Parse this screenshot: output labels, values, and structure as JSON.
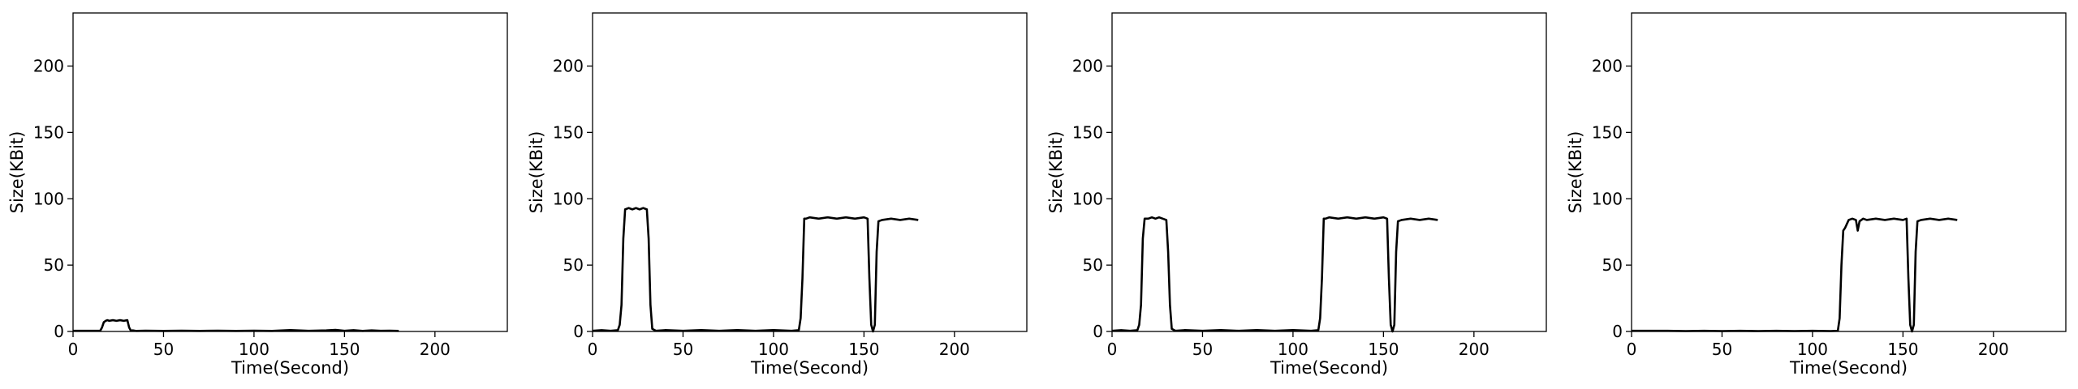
{
  "chart_data": [
    {
      "type": "line",
      "xlabel": "Time(Second)",
      "ylabel": "Size(KBit)",
      "xlim": [
        0,
        240
      ],
      "ylim": [
        0,
        240
      ],
      "xticks": [
        0,
        50,
        100,
        150,
        200
      ],
      "yticks": [
        0,
        50,
        100,
        150,
        200
      ],
      "grid": false,
      "series": [
        {
          "x": [
            0,
            15,
            16,
            17,
            18,
            19,
            20,
            22,
            24,
            26,
            28,
            30,
            31,
            32,
            33,
            35,
            40,
            50,
            60,
            70,
            80,
            90,
            100,
            110,
            120,
            130,
            140,
            145,
            150,
            155,
            160,
            165,
            170,
            175,
            180
          ],
          "values": [
            0.5,
            0.5,
            3,
            7,
            8,
            8.5,
            8,
            8.5,
            8,
            8.5,
            8,
            8.5,
            3,
            0.5,
            0.8,
            0.4,
            0.6,
            0.4,
            0.6,
            0.4,
            0.6,
            0.4,
            0.6,
            0.4,
            1,
            0.5,
            0.8,
            1.2,
            0.5,
            1,
            0.4,
            0.8,
            0.5,
            0.6,
            0.4
          ]
        }
      ]
    },
    {
      "type": "line",
      "xlabel": "Time(Second)",
      "ylabel": "Size(KBit)",
      "xlim": [
        0,
        240
      ],
      "ylim": [
        0,
        240
      ],
      "xticks": [
        0,
        50,
        100,
        150,
        200
      ],
      "yticks": [
        0,
        50,
        100,
        150,
        200
      ],
      "grid": false,
      "series": [
        {
          "x": [
            0,
            5,
            10,
            14,
            15,
            16,
            17,
            18,
            20,
            22,
            24,
            26,
            28,
            30,
            31,
            32,
            33,
            35,
            40,
            50,
            60,
            70,
            80,
            90,
            100,
            110,
            114,
            115,
            116,
            117,
            118,
            120,
            125,
            130,
            135,
            140,
            145,
            150,
            152,
            153,
            154,
            155,
            156,
            157,
            158,
            160,
            165,
            170,
            175,
            180
          ],
          "values": [
            0.5,
            1,
            0.5,
            1,
            5,
            20,
            70,
            92,
            93,
            92,
            93,
            92,
            93,
            92,
            70,
            20,
            2,
            0.5,
            1,
            0.5,
            1,
            0.5,
            1,
            0.5,
            1,
            0.5,
            1,
            10,
            40,
            85,
            85,
            86,
            85,
            86,
            85,
            86,
            85,
            86,
            85,
            40,
            5,
            0,
            5,
            60,
            83,
            84,
            85,
            84,
            85,
            84
          ]
        }
      ]
    },
    {
      "type": "line",
      "xlabel": "Time(Second)",
      "ylabel": "Size(KBit)",
      "xlim": [
        0,
        240
      ],
      "ylim": [
        0,
        240
      ],
      "xticks": [
        0,
        50,
        100,
        150,
        200
      ],
      "yticks": [
        0,
        50,
        100,
        150,
        200
      ],
      "grid": false,
      "series": [
        {
          "x": [
            0,
            5,
            10,
            14,
            15,
            16,
            17,
            18,
            20,
            22,
            24,
            26,
            28,
            30,
            31,
            32,
            33,
            35,
            40,
            50,
            60,
            70,
            80,
            90,
            100,
            110,
            114,
            115,
            116,
            117,
            118,
            120,
            125,
            130,
            135,
            140,
            145,
            150,
            152,
            153,
            154,
            155,
            156,
            157,
            158,
            160,
            165,
            170,
            175,
            180
          ],
          "values": [
            0.5,
            1,
            0.5,
            1,
            5,
            20,
            70,
            85,
            85,
            86,
            85,
            86,
            85,
            84,
            60,
            20,
            2,
            0.5,
            1,
            0.5,
            1,
            0.5,
            1,
            0.5,
            1,
            0.5,
            1,
            10,
            40,
            85,
            85,
            86,
            85,
            86,
            85,
            86,
            85,
            86,
            85,
            40,
            5,
            0,
            5,
            60,
            83,
            84,
            85,
            84,
            85,
            84
          ]
        }
      ]
    },
    {
      "type": "line",
      "xlabel": "Time(Second)",
      "ylabel": "Size(KBit)",
      "xlim": [
        0,
        240
      ],
      "ylim": [
        0,
        240
      ],
      "xticks": [
        0,
        50,
        100,
        150,
        200
      ],
      "yticks": [
        0,
        50,
        100,
        150,
        200
      ],
      "grid": false,
      "series": [
        {
          "x": [
            0,
            10,
            20,
            30,
            40,
            50,
            60,
            70,
            80,
            90,
            100,
            110,
            114,
            115,
            116,
            117,
            118,
            120,
            122,
            124,
            125,
            126,
            128,
            130,
            135,
            140,
            145,
            150,
            152,
            153,
            154,
            155,
            156,
            157,
            158,
            160,
            165,
            170,
            175,
            180
          ],
          "values": [
            0.5,
            0.5,
            0.5,
            0.3,
            0.5,
            0.3,
            0.5,
            0.3,
            0.5,
            0.3,
            0.5,
            0.3,
            0.5,
            10,
            50,
            76,
            78,
            84,
            85,
            84,
            76,
            83,
            85,
            84,
            85,
            84,
            85,
            84,
            85,
            40,
            5,
            0,
            5,
            60,
            83,
            84,
            85,
            84,
            85,
            84
          ]
        }
      ]
    }
  ]
}
